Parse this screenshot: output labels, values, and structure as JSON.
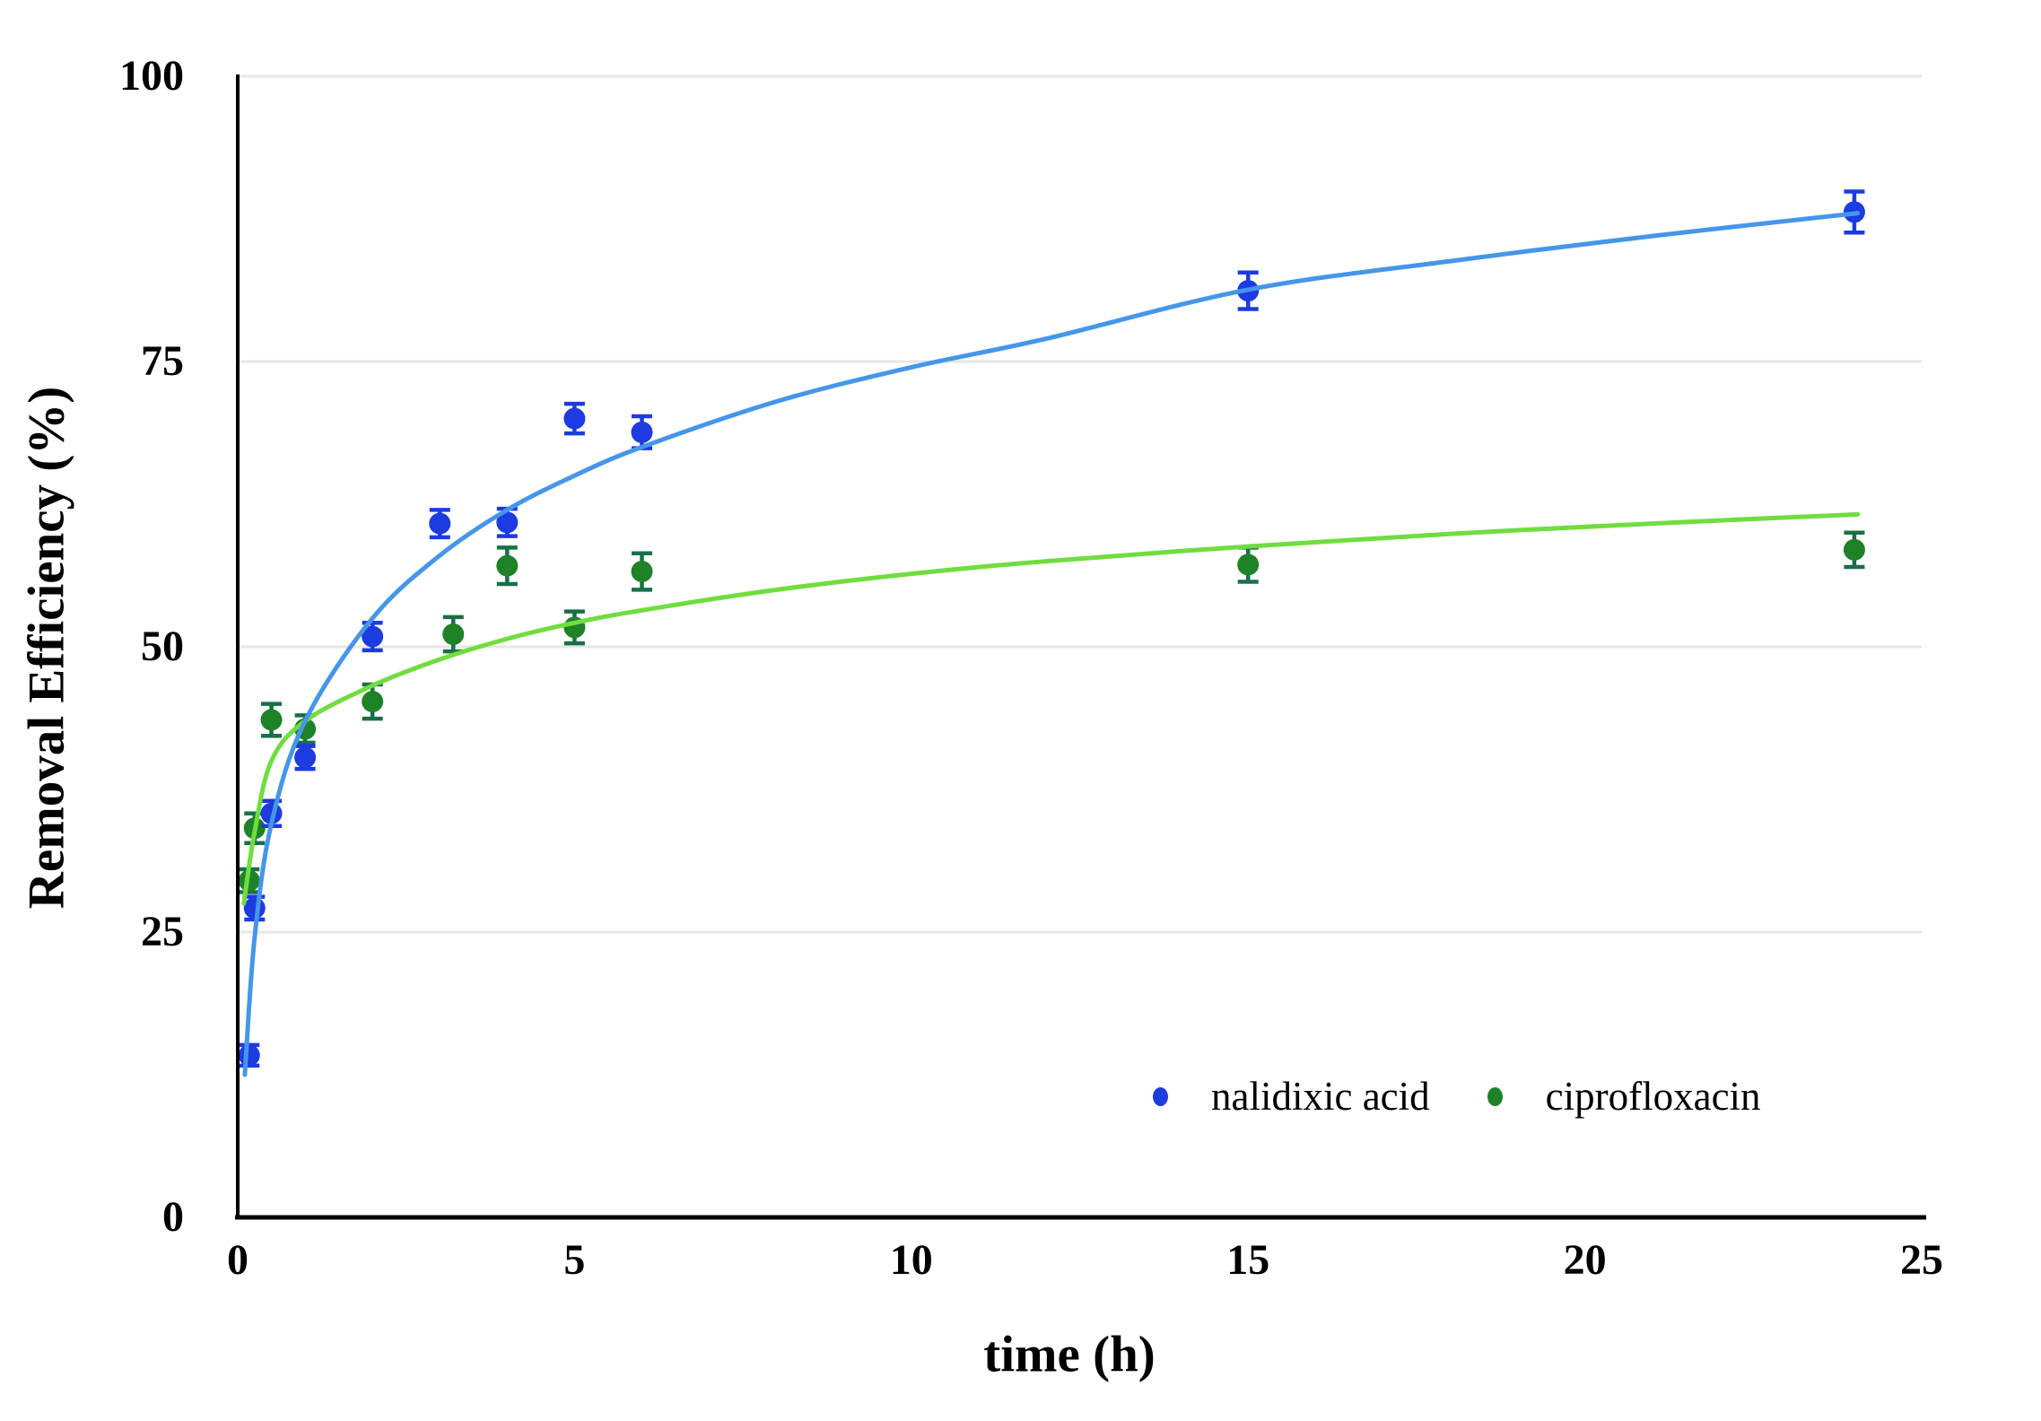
{
  "figure": {
    "background": "#ffffff"
  },
  "chart_data": {
    "type": "scatter",
    "title": "",
    "xlabel": "time (h)",
    "ylabel": "Removal Efficiency (%)",
    "xlim": [
      0,
      25
    ],
    "ylim": [
      0,
      100
    ],
    "x_ticks": [
      0,
      5,
      10,
      15,
      20,
      25
    ],
    "y_ticks": [
      0,
      25,
      50,
      75,
      100
    ],
    "grid": "horizontal",
    "gridline_color": "#e7e7e7",
    "axis_color": "#000000",
    "legend_position": "inside bottom-right",
    "series": [
      {
        "name": "ciprofloxacin",
        "marker": "circle",
        "marker_color": "#1e8227",
        "error_bar_color": "#187048",
        "trend_color": "#70dd3f",
        "points": [
          {
            "t": 0.17,
            "y": 29.5,
            "err": 1.0
          },
          {
            "t": 0.25,
            "y": 34.1,
            "err": 1.3
          },
          {
            "t": 0.5,
            "y": 43.6,
            "err": 1.4
          },
          {
            "t": 1,
            "y": 42.8,
            "err": 1.2
          },
          {
            "t": 2,
            "y": 45.2,
            "err": 1.5
          },
          {
            "t": 3.2,
            "y": 51.1,
            "err": 1.5
          },
          {
            "t": 4,
            "y": 57.1,
            "err": 1.6
          },
          {
            "t": 5,
            "y": 51.7,
            "err": 1.4
          },
          {
            "t": 6,
            "y": 56.6,
            "err": 1.6
          },
          {
            "t": 15,
            "y": 57.2,
            "err": 1.5
          },
          {
            "t": 24,
            "y": 58.5,
            "err": 1.5
          }
        ],
        "trend_curve": [
          [
            0.09,
            27.5
          ],
          [
            0.25,
            33.8
          ],
          [
            0.5,
            40.0
          ],
          [
            1,
            43.5
          ],
          [
            2,
            46.6
          ],
          [
            3,
            48.9
          ],
          [
            4,
            50.7
          ],
          [
            5,
            52.1
          ],
          [
            6,
            53.2
          ],
          [
            8,
            55.0
          ],
          [
            10,
            56.4
          ],
          [
            12,
            57.5
          ],
          [
            15,
            58.8
          ],
          [
            18,
            59.9
          ],
          [
            21,
            60.8
          ],
          [
            24.05,
            61.6
          ]
        ]
      },
      {
        "name": "nalidixic acid",
        "marker": "circle",
        "marker_color": "#1c3be0",
        "error_bar_color": "#1c3be0",
        "trend_color": "#4596ea",
        "points": [
          {
            "t": 0.17,
            "y": 14.2,
            "err": 0.9
          },
          {
            "t": 0.25,
            "y": 27.1,
            "err": 1.0
          },
          {
            "t": 0.5,
            "y": 35.4,
            "err": 1.1
          },
          {
            "t": 1,
            "y": 40.3,
            "err": 1.0
          },
          {
            "t": 2,
            "y": 50.9,
            "err": 1.2
          },
          {
            "t": 3,
            "y": 60.8,
            "err": 1.2
          },
          {
            "t": 4,
            "y": 60.9,
            "err": 1.2
          },
          {
            "t": 5,
            "y": 70.0,
            "err": 1.3
          },
          {
            "t": 6,
            "y": 68.8,
            "err": 1.4
          },
          {
            "t": 15,
            "y": 81.2,
            "err": 1.6
          },
          {
            "t": 24,
            "y": 88.1,
            "err": 1.8
          }
        ],
        "trend_curve": [
          [
            0.105,
            12.5
          ],
          [
            0.25,
            24.5
          ],
          [
            0.5,
            34.5
          ],
          [
            1,
            43.5
          ],
          [
            2,
            52.5
          ],
          [
            3,
            58.0
          ],
          [
            4,
            62.0
          ],
          [
            5,
            65.0
          ],
          [
            6,
            67.5
          ],
          [
            8,
            71.5
          ],
          [
            10,
            74.5
          ],
          [
            12,
            77.0
          ],
          [
            15,
            81.3
          ],
          [
            18,
            83.8
          ],
          [
            21,
            86.0
          ],
          [
            24.05,
            88.0
          ]
        ]
      }
    ]
  },
  "legend": {
    "items": [
      {
        "label": "nalidixic acid",
        "color": "#1c3be0"
      },
      {
        "label": "ciprofloxacin",
        "color": "#1e8227"
      }
    ]
  }
}
